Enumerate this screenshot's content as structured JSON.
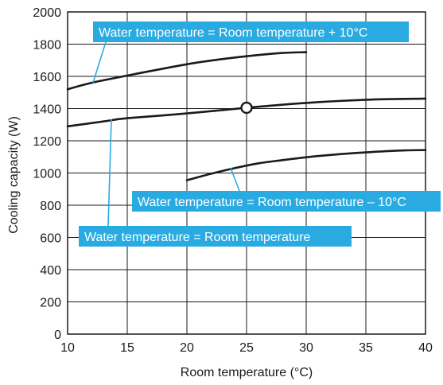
{
  "chart_data": {
    "type": "line",
    "title": "",
    "xlabel": "Room temperature (°C)",
    "ylabel": "Cooling capacity (W)",
    "xlim": [
      10,
      40
    ],
    "ylim": [
      0,
      2000
    ],
    "xticks": [
      10,
      15,
      20,
      25,
      30,
      35,
      40
    ],
    "yticks": [
      0,
      200,
      400,
      600,
      800,
      1000,
      1200,
      1400,
      1600,
      1800,
      2000
    ],
    "grid": true,
    "series": [
      {
        "name": "Water temperature = Room temperature + 10°C",
        "x": [
          10,
          12,
          15,
          18,
          20,
          22,
          25,
          28,
          30
        ],
        "y": [
          1520,
          1560,
          1605,
          1648,
          1675,
          1698,
          1725,
          1745,
          1750
        ]
      },
      {
        "name": "Water temperature = Room temperature",
        "x": [
          10,
          13,
          15,
          20,
          25,
          30,
          35,
          40
        ],
        "y": [
          1290,
          1320,
          1340,
          1370,
          1405,
          1435,
          1455,
          1462
        ]
      },
      {
        "name": "Water temperature = Room temperature – 10°C",
        "x": [
          20,
          22,
          24,
          26,
          28,
          30,
          32,
          35,
          38,
          40
        ],
        "y": [
          955,
          995,
          1030,
          1060,
          1080,
          1098,
          1112,
          1128,
          1140,
          1142
        ]
      }
    ],
    "marker": {
      "x": 25,
      "y": 1405
    },
    "annotations": [
      {
        "text": "Water temperature = Room temperature + 10°C",
        "series": 0
      },
      {
        "text": "Water temperature = Room temperature – 10°C",
        "series": 2
      },
      {
        "text": "Water temperature = Room temperature",
        "series": 1
      }
    ]
  },
  "colors": {
    "annotation_bg": "#29abe2",
    "annotation_text": "#ffffff",
    "line": "#1a1a1a",
    "marker_fill": "#ffffff"
  }
}
